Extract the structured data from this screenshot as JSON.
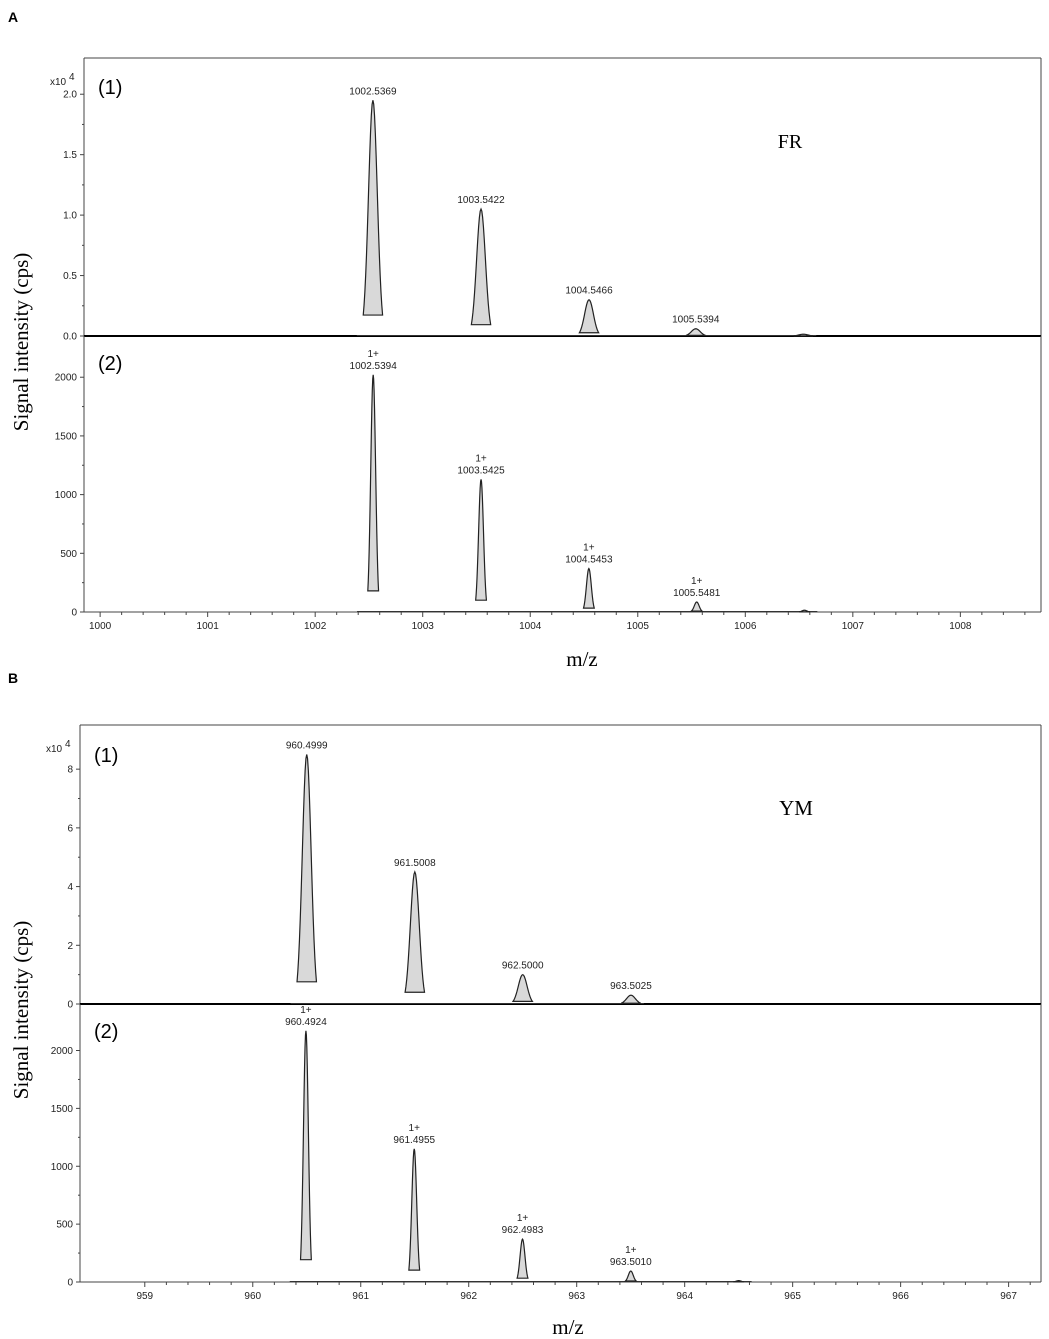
{
  "figure": {
    "panels": [
      {
        "letter": "A",
        "ylabel": "Signal intensity (cps)",
        "xlabel": "m/z"
      },
      {
        "letter": "B",
        "ylabel": "Signal intensity (cps)",
        "xlabel": "m/z"
      }
    ]
  },
  "chart_data": [
    {
      "type": "line",
      "panel": "A(1)",
      "subplot_label": "(1)",
      "annotation": "FR",
      "scale_label": "x10",
      "scale_exponent": "4",
      "xlim": [
        999.85,
        1008.75
      ],
      "ylim": [
        0,
        2.25
      ],
      "yticks": [
        "0.0",
        "0.5",
        "1.0",
        "1.5",
        "2.0"
      ],
      "ytick_values": [
        0,
        0.5,
        1.0,
        1.5,
        2.0
      ],
      "peak_width": 0.09,
      "peaks": [
        {
          "x": 1002.5369,
          "y": 1.95,
          "label": "1002.5369"
        },
        {
          "x": 1003.5422,
          "y": 1.05,
          "label": "1003.5422"
        },
        {
          "x": 1004.5466,
          "y": 0.3,
          "label": "1004.5466"
        },
        {
          "x": 1005.5394,
          "y": 0.06,
          "label": "1005.5394"
        },
        {
          "x": 1006.54,
          "y": 0.015,
          "label": ""
        }
      ]
    },
    {
      "type": "line",
      "panel": "A(2)",
      "subplot_label": "(2)",
      "xlim": [
        999.85,
        1008.75
      ],
      "ylim": [
        0,
        2300
      ],
      "xticks": [
        "1000",
        "1001",
        "1002",
        "1003",
        "1004",
        "1005",
        "1006",
        "1007",
        "1008"
      ],
      "xtick_values": [
        1000,
        1001,
        1002,
        1003,
        1004,
        1005,
        1006,
        1007,
        1008
      ],
      "yticks": [
        "0",
        "500",
        "1000",
        "1500",
        "2000"
      ],
      "ytick_values": [
        0,
        500,
        1000,
        1500,
        2000
      ],
      "peak_width": 0.05,
      "peaks": [
        {
          "x": 1002.5394,
          "y": 2020,
          "charge": "1+",
          "label": "1002.5394"
        },
        {
          "x": 1003.5425,
          "y": 1130,
          "charge": "1+",
          "label": "1003.5425"
        },
        {
          "x": 1004.5453,
          "y": 370,
          "charge": "1+",
          "label": "1004.5453"
        },
        {
          "x": 1005.5481,
          "y": 85,
          "charge": "1+",
          "label": "1005.5481"
        },
        {
          "x": 1006.55,
          "y": 15,
          "label": ""
        }
      ]
    },
    {
      "type": "line",
      "panel": "B(1)",
      "subplot_label": "(1)",
      "annotation": "YM",
      "scale_label": "x10",
      "scale_exponent": "4",
      "xlim": [
        958.4,
        967.3
      ],
      "ylim": [
        0,
        9.3
      ],
      "yticks": [
        "0",
        "2",
        "4",
        "6",
        "8"
      ],
      "ytick_values": [
        0,
        2,
        4,
        6,
        8
      ],
      "peak_width": 0.09,
      "peaks": [
        {
          "x": 960.4999,
          "y": 8.5,
          "label": "960.4999"
        },
        {
          "x": 961.5008,
          "y": 4.5,
          "label": "961.5008"
        },
        {
          "x": 962.5,
          "y": 1.0,
          "label": "962.5000"
        },
        {
          "x": 963.5025,
          "y": 0.3,
          "label": "963.5025"
        }
      ]
    },
    {
      "type": "line",
      "panel": "B(2)",
      "subplot_label": "(2)",
      "xlim": [
        958.4,
        967.3
      ],
      "ylim": [
        0,
        2350
      ],
      "xticks": [
        "959",
        "960",
        "961",
        "962",
        "963",
        "964",
        "965",
        "966",
        "967"
      ],
      "xtick_values": [
        959,
        960,
        961,
        962,
        963,
        964,
        965,
        966,
        967
      ],
      "yticks": [
        "0",
        "500",
        "1000",
        "1500",
        "2000"
      ],
      "ytick_values": [
        0,
        500,
        1000,
        1500,
        2000
      ],
      "peak_width": 0.05,
      "peaks": [
        {
          "x": 960.4924,
          "y": 2170,
          "charge": "1+",
          "label": "960.4924"
        },
        {
          "x": 961.4955,
          "y": 1150,
          "charge": "1+",
          "label": "961.4955"
        },
        {
          "x": 962.4983,
          "y": 370,
          "charge": "1+",
          "label": "962.4983"
        },
        {
          "x": 963.501,
          "y": 95,
          "charge": "1+",
          "label": "963.5010"
        },
        {
          "x": 964.5,
          "y": 12,
          "label": ""
        }
      ]
    }
  ]
}
